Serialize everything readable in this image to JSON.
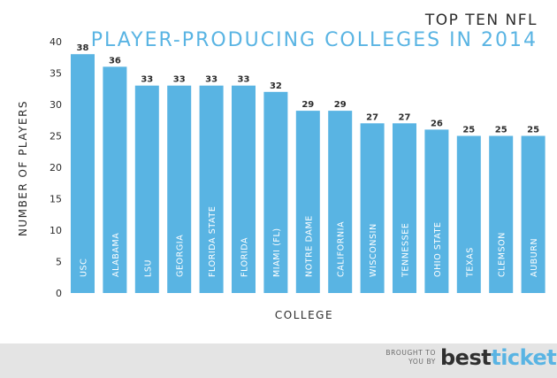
{
  "header": {
    "title_line1": "TOP TEN NFL",
    "title_line2": "PLAYER-PRODUCING COLLEGES IN 2014"
  },
  "footer": {
    "brought_line1": "BROUGHT TO",
    "brought_line2": "YOU BY",
    "brand_part1": "best",
    "brand_part2": "tickets"
  },
  "chart_data": {
    "type": "bar",
    "xlabel": "COLLEGE",
    "ylabel": "NUMBER OF PLAYERS",
    "ylim": [
      0,
      40
    ],
    "yticks": [
      0,
      5,
      10,
      15,
      20,
      25,
      30,
      35,
      40
    ],
    "grid": false,
    "categories": [
      "USC",
      "ALABAMA",
      "LSU",
      "GEORGIA",
      "FLORIDA STATE",
      "FLORIDA",
      "MIAMI (FL)",
      "NOTRE DAME",
      "CALIFORNIA",
      "WISCONSIN",
      "TENNESSEE",
      "OHIO STATE",
      "TEXAS",
      "CLEMSON",
      "AUBURN"
    ],
    "values": [
      38,
      36,
      33,
      33,
      33,
      33,
      32,
      29,
      29,
      27,
      27,
      26,
      25,
      25,
      25
    ],
    "bar_color": "#59b4e3"
  }
}
